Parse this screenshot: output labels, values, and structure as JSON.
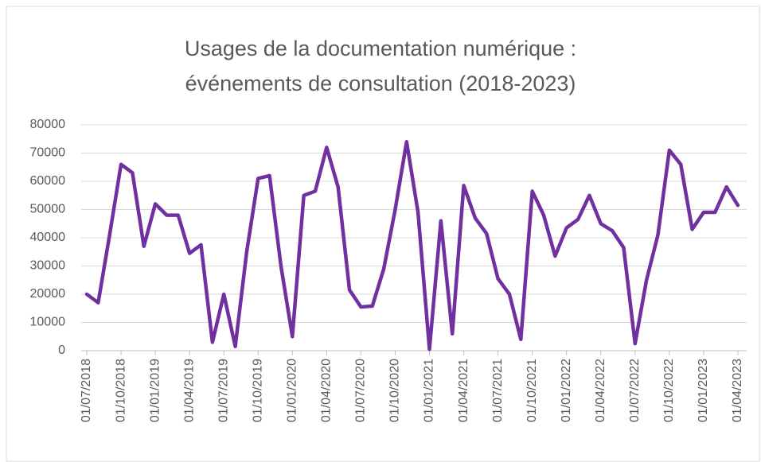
{
  "chart_data": {
    "type": "line",
    "title": [
      "Usages de la documentation numérique :",
      "événements de consultation (2018-2023)"
    ],
    "categories": [
      "01/07/2018",
      null,
      null,
      "01/10/2018",
      null,
      null,
      "01/01/2019",
      null,
      null,
      "01/04/2019",
      null,
      null,
      "01/07/2019",
      null,
      null,
      "01/10/2019",
      null,
      null,
      "01/01/2020",
      null,
      null,
      "01/04/2020",
      null,
      null,
      "01/07/2020",
      null,
      null,
      "01/10/2020",
      null,
      null,
      "01/01/2021",
      null,
      null,
      "01/04/2021",
      null,
      null,
      "01/07/2021",
      null,
      null,
      "01/10/2021",
      null,
      null,
      "01/01/2022",
      null,
      null,
      "01/04/2022",
      null,
      null,
      "01/07/2022",
      null,
      null,
      "01/10/2022",
      null,
      null,
      "01/01/2023",
      null,
      null,
      "01/04/2023"
    ],
    "values": [
      20000,
      17000,
      41000,
      66000,
      63000,
      37000,
      52000,
      48000,
      48000,
      34500,
      37500,
      3000,
      20000,
      1500,
      35000,
      61000,
      62000,
      30000,
      5000,
      55000,
      56500,
      72000,
      58000,
      21500,
      15500,
      15800,
      29000,
      50000,
      74000,
      49000,
      500,
      46000,
      6000,
      58500,
      47000,
      41500,
      25500,
      20000,
      4000,
      56500,
      48000,
      33500,
      43500,
      46500,
      55000,
      45000,
      42500,
      36500,
      2500,
      25000,
      41000,
      71000,
      66000,
      43000,
      49000,
      49000,
      58000,
      51500
    ],
    "color": "#7030a0",
    "ylim": [
      0,
      80000
    ],
    "yticks": [
      0,
      10000,
      20000,
      30000,
      40000,
      50000,
      60000,
      70000,
      80000
    ],
    "grid": true
  }
}
